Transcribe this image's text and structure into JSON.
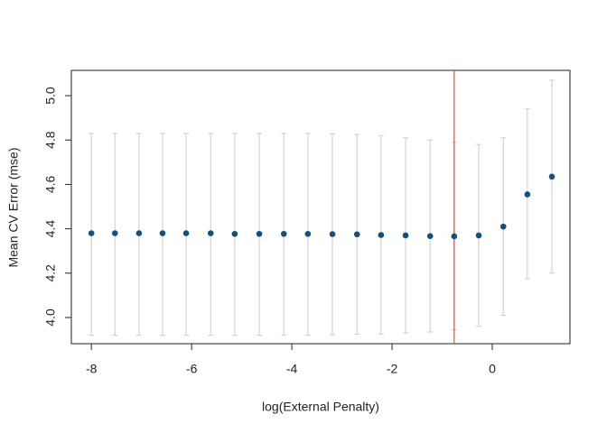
{
  "chart_data": {
    "type": "scatter",
    "x_label": "log(External Penalty)",
    "y_label": "Mean CV Error (mse)",
    "x": [
      -8.0,
      -7.53,
      -7.05,
      -6.58,
      -6.11,
      -5.62,
      -5.14,
      -4.65,
      -4.16,
      -3.68,
      -3.19,
      -2.7,
      -2.22,
      -1.73,
      -1.24,
      -0.76,
      -0.27,
      0.22,
      0.7,
      1.19
    ],
    "series": [
      {
        "color": "#15507a",
        "bar_color": "#cccccc",
        "values": [
          4.38,
          4.38,
          4.38,
          4.38,
          4.38,
          4.38,
          4.377,
          4.377,
          4.377,
          4.377,
          4.376,
          4.375,
          4.372,
          4.37,
          4.367,
          4.366,
          4.37,
          4.41,
          4.555,
          4.635
        ],
        "upper": [
          4.83,
          4.83,
          4.83,
          4.83,
          4.83,
          4.83,
          4.83,
          4.83,
          4.83,
          4.83,
          4.828,
          4.825,
          4.82,
          4.81,
          4.8,
          4.79,
          4.78,
          4.81,
          4.94,
          5.07
        ],
        "lower": [
          3.92,
          3.92,
          3.92,
          3.92,
          3.92,
          3.92,
          3.92,
          3.92,
          3.92,
          3.92,
          3.922,
          3.925,
          3.925,
          3.93,
          3.935,
          3.945,
          3.96,
          4.01,
          4.175,
          4.2
        ]
      }
    ],
    "vline": -0.76,
    "vline_color": "#c0392b",
    "xlim": [
      -8.4,
      1.55
    ],
    "ylim": [
      3.882,
      5.114
    ],
    "xticks": [
      -8,
      -6,
      -4,
      -2,
      0
    ],
    "yticks": [
      {
        "value": 4,
        "label": "4.0"
      },
      4.2,
      4.4,
      4.6,
      4.8,
      {
        "value": 5,
        "label": "5.0"
      }
    ]
  }
}
